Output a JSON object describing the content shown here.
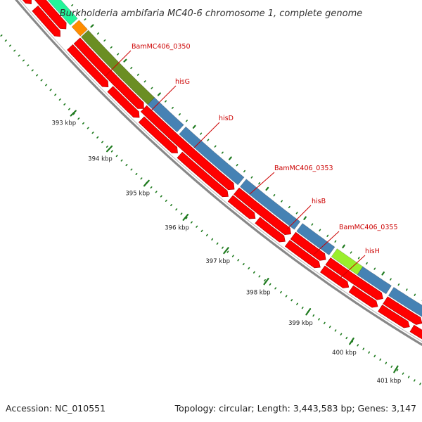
{
  "header": {
    "title": "Burkholderia ambifaria MC40-6 chromosome 1, complete genome"
  },
  "footer": {
    "accession": "Accession: NC_010551",
    "topology": "Topology: circular; Length: 3,443,583 bp; Genes: 3,147"
  },
  "colors": {
    "cds_forward_red": "#ff0000",
    "gene_blue": "#4682b4",
    "gene_olive": "#6b8e23",
    "gene_orange": "#ff8c00",
    "gene_lime": "#9aee2c",
    "gene_mint": "#22f59a",
    "backbone": "#888888",
    "tick_green": "#1e7a1e",
    "label_red": "#cc0000"
  },
  "map": {
    "type": "circular-genome-map-zoomed",
    "tick_labels": [
      "393 kbp",
      "394 kbp",
      "395 kbp",
      "396 kbp",
      "397 kbp",
      "398 kbp",
      "399 kbp",
      "400 kbp",
      "401 kbp"
    ],
    "gene_labels": [
      "BamMC406_0350",
      "hisG",
      "hisD",
      "BamMC406_0353",
      "hisB",
      "BamMC406_0355",
      "hisH"
    ]
  }
}
